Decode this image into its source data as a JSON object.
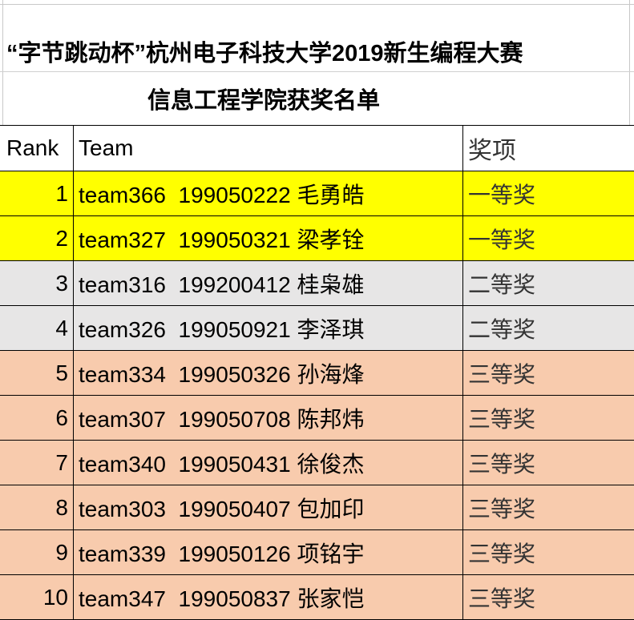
{
  "header": {
    "title": "“字节跳动杯”杭州电子科技大学2019新生编程大赛",
    "subtitle": "信息工程学院获奖名单"
  },
  "table": {
    "columns": [
      "Rank",
      "Team",
      "奖项"
    ],
    "rows": [
      [
        1,
        "team366  199050222 毛勇皓",
        "一等奖"
      ],
      [
        2,
        "team327  199050321 梁孝铨",
        "一等奖"
      ],
      [
        3,
        "team316  199200412 桂枭雄",
        "二等奖"
      ],
      [
        4,
        "team326  199050921 李泽琪",
        "二等奖"
      ],
      [
        5,
        "team334  199050326 孙海烽",
        "三等奖"
      ],
      [
        6,
        "team307  199050708 陈邦炜",
        "三等奖"
      ],
      [
        7,
        "team340  199050431 徐俊杰",
        "三等奖"
      ],
      [
        8,
        "team303  199050407 包加印",
        "三等奖"
      ],
      [
        9,
        "team339  199050126 项铭宇",
        "三等奖"
      ],
      [
        10,
        "team347  199050837 张家恺",
        "三等奖"
      ]
    ]
  }
}
